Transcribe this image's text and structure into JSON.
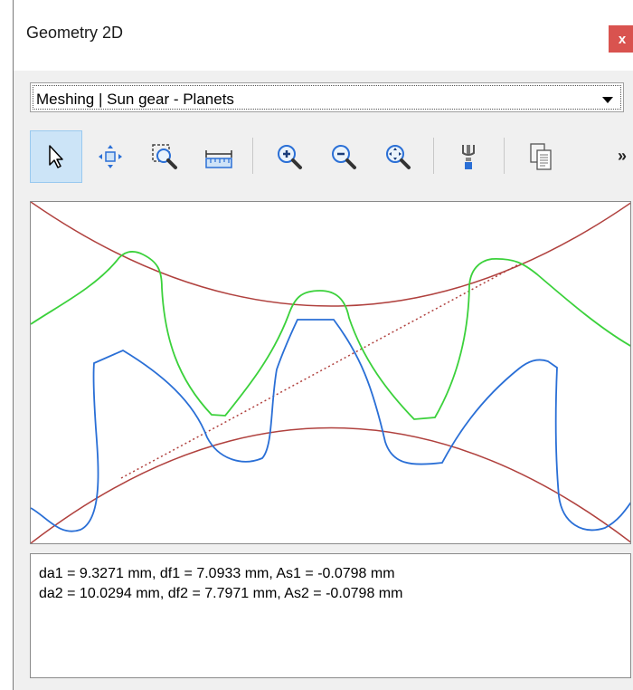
{
  "window": {
    "title": "Geometry 2D",
    "close_label": "x"
  },
  "selector": {
    "value": "Meshing | Sun gear - Planets"
  },
  "toolbar": {
    "buttons": [
      {
        "name": "select-icon",
        "active": true
      },
      {
        "name": "pan-icon",
        "active": false
      },
      {
        "name": "zoom-window-icon",
        "active": false
      },
      {
        "name": "measure-icon",
        "active": false
      },
      {
        "name": "zoom-in-icon",
        "active": false
      },
      {
        "name": "zoom-out-icon",
        "active": false
      },
      {
        "name": "zoom-fit-icon",
        "active": false
      },
      {
        "name": "tool-icon",
        "active": false
      },
      {
        "name": "copy-icon",
        "active": false
      }
    ],
    "more_label": "»"
  },
  "colors": {
    "sun_gear": "#2a6fd6",
    "planet_gear": "#3bd13b",
    "circles": "#b0413e",
    "line_of_action": "#b0413e"
  },
  "info": {
    "line1": "da1 = 9.3271 mm, df1 = 7.0933 mm, As1 = -0.0798 mm",
    "line2": "da2 = 10.0294 mm, df2 = 7.7971 mm, As2 = -0.0798 mm"
  }
}
